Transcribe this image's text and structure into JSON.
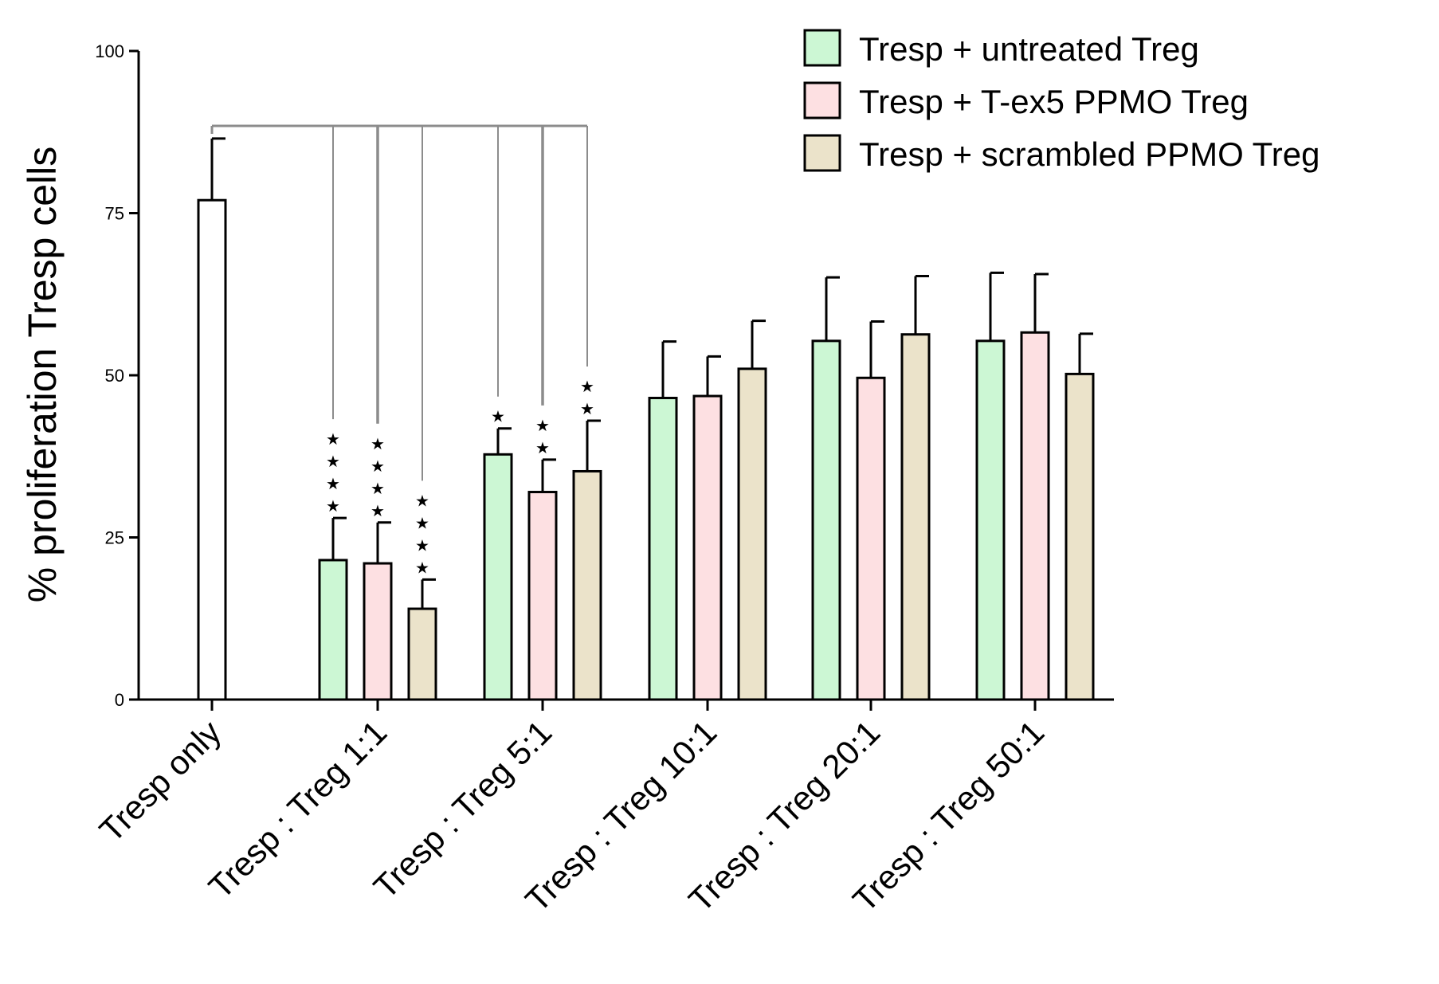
{
  "chart_data": {
    "type": "bar",
    "title": "",
    "xlabel": "",
    "ylabel": "% proliferation Tresp cells",
    "ylim": [
      0,
      100
    ],
    "yticks": [
      0,
      25,
      50,
      75,
      100
    ],
    "grid": false,
    "legend_position": "top-right",
    "control": {
      "category": "Tresp only",
      "value": 77,
      "error": 9.5,
      "color": "#ffffff"
    },
    "categories": [
      "Tresp : Treg 1:1",
      "Tresp : Treg 5:1",
      "Tresp : Treg 10:1",
      "Tresp : Treg 20:1",
      "Tresp : Treg 50:1"
    ],
    "series": [
      {
        "name": "Tresp + untreated Treg",
        "color": "#ccf7d4",
        "values": [
          21.5,
          37.8,
          46.5,
          55.3,
          55.3
        ],
        "errors": [
          6.5,
          4,
          8.7,
          9.8,
          10.5
        ],
        "significance": [
          "****",
          "*",
          "",
          "",
          ""
        ]
      },
      {
        "name": "Tresp + T-ex5 PPMO Treg",
        "color": "#fde0e2",
        "values": [
          21,
          32,
          46.8,
          49.6,
          56.6
        ],
        "errors": [
          6.3,
          5,
          6.1,
          8.7,
          9
        ],
        "significance": [
          "****",
          "**",
          "",
          "",
          ""
        ]
      },
      {
        "name": "Tresp + scrambled PPMO Treg",
        "color": "#ebe3ca",
        "values": [
          14,
          35.2,
          51,
          56.3,
          50.2
        ],
        "errors": [
          4.5,
          7.8,
          7.4,
          9,
          6.2
        ],
        "significance": [
          "****",
          "**",
          "",
          "",
          ""
        ]
      }
    ]
  }
}
